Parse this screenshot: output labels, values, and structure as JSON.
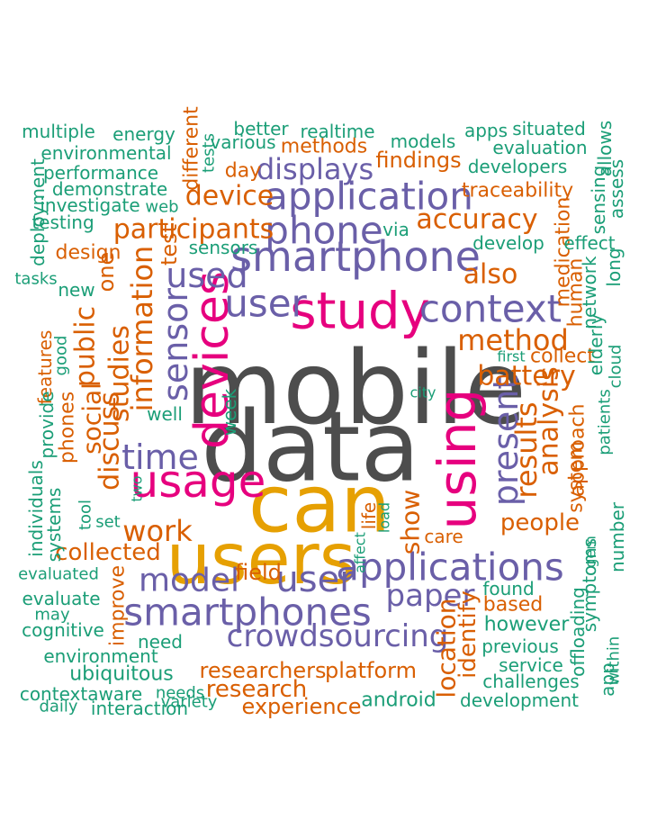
{
  "colors": {
    "gray": "#4d4d4d",
    "orange": "#d95f02",
    "gold": "#e6a002",
    "purple": "#6a5fa8",
    "magenta": "#e6007e",
    "green": "#1b9e77"
  },
  "words": [
    {
      "text": "mobile",
      "color": "gray"
    },
    {
      "text": "data",
      "color": "gray"
    },
    {
      "text": "can",
      "color": "gold"
    },
    {
      "text": "users",
      "color": "gold"
    },
    {
      "text": "study",
      "color": "magenta"
    },
    {
      "text": "devices",
      "color": "magenta"
    },
    {
      "text": "usage",
      "color": "magenta"
    },
    {
      "text": "using",
      "color": "magenta"
    },
    {
      "text": "smartphone",
      "color": "purple"
    },
    {
      "text": "smartphones",
      "color": "purple"
    },
    {
      "text": "application",
      "color": "purple"
    },
    {
      "text": "applications",
      "color": "purple"
    },
    {
      "text": "phone",
      "color": "purple"
    },
    {
      "text": "user",
      "color": "purple"
    },
    {
      "text": "user",
      "color": "purple"
    },
    {
      "text": "context",
      "color": "purple"
    },
    {
      "text": "crowdsourcing",
      "color": "purple"
    },
    {
      "text": "model",
      "color": "purple"
    },
    {
      "text": "paper",
      "color": "purple"
    },
    {
      "text": "present",
      "color": "purple"
    },
    {
      "text": "sensor",
      "color": "purple"
    },
    {
      "text": "time",
      "color": "purple"
    },
    {
      "text": "used",
      "color": "purple"
    },
    {
      "text": "displays",
      "color": "purple"
    },
    {
      "text": "participants",
      "color": "orange"
    },
    {
      "text": "device",
      "color": "orange"
    },
    {
      "text": "accuracy",
      "color": "orange"
    },
    {
      "text": "method",
      "color": "orange"
    },
    {
      "text": "battery",
      "color": "orange"
    },
    {
      "text": "results",
      "color": "orange"
    },
    {
      "text": "analysis",
      "color": "orange"
    },
    {
      "text": "also",
      "color": "orange"
    },
    {
      "text": "information",
      "color": "orange"
    },
    {
      "text": "studies",
      "color": "orange"
    },
    {
      "text": "public",
      "color": "orange"
    },
    {
      "text": "discuss",
      "color": "orange"
    },
    {
      "text": "social",
      "color": "orange"
    },
    {
      "text": "work",
      "color": "orange"
    },
    {
      "text": "collected",
      "color": "orange"
    },
    {
      "text": "research",
      "color": "orange"
    },
    {
      "text": "researchers",
      "color": "orange"
    },
    {
      "text": "platform",
      "color": "orange"
    },
    {
      "text": "experience",
      "color": "orange"
    },
    {
      "text": "location",
      "color": "orange"
    },
    {
      "text": "identify",
      "color": "orange"
    },
    {
      "text": "show",
      "color": "orange"
    },
    {
      "text": "people",
      "color": "orange"
    },
    {
      "text": "based",
      "color": "orange"
    },
    {
      "text": "approach",
      "color": "orange"
    },
    {
      "text": "system",
      "color": "orange"
    },
    {
      "text": "findings",
      "color": "orange"
    },
    {
      "text": "methods",
      "color": "orange"
    },
    {
      "text": "day",
      "color": "orange"
    },
    {
      "text": "design",
      "color": "orange"
    },
    {
      "text": "different",
      "color": "orange"
    },
    {
      "text": "traceability",
      "color": "orange"
    },
    {
      "text": "medication",
      "color": "orange"
    },
    {
      "text": "human",
      "color": "orange"
    },
    {
      "text": "collect",
      "color": "orange"
    },
    {
      "text": "phones",
      "color": "orange"
    },
    {
      "text": "features",
      "color": "orange"
    },
    {
      "text": "one",
      "color": "orange"
    },
    {
      "text": "test",
      "color": "orange"
    },
    {
      "text": "improve",
      "color": "orange"
    },
    {
      "text": "field",
      "color": "orange"
    },
    {
      "text": "care",
      "color": "orange"
    },
    {
      "text": "life",
      "color": "orange"
    },
    {
      "text": "multiple",
      "color": "green"
    },
    {
      "text": "energy",
      "color": "green"
    },
    {
      "text": "better",
      "color": "green"
    },
    {
      "text": "realtime",
      "color": "green"
    },
    {
      "text": "models",
      "color": "green"
    },
    {
      "text": "apps",
      "color": "green"
    },
    {
      "text": "situated",
      "color": "green"
    },
    {
      "text": "environmental",
      "color": "green"
    },
    {
      "text": "performance",
      "color": "green"
    },
    {
      "text": "demonstrate",
      "color": "green"
    },
    {
      "text": "investigate",
      "color": "green"
    },
    {
      "text": "testing",
      "color": "green"
    },
    {
      "text": "web",
      "color": "green"
    },
    {
      "text": "various",
      "color": "green"
    },
    {
      "text": "tests",
      "color": "green"
    },
    {
      "text": "evaluation",
      "color": "green"
    },
    {
      "text": "developers",
      "color": "green"
    },
    {
      "text": "develop",
      "color": "green"
    },
    {
      "text": "sensors",
      "color": "green"
    },
    {
      "text": "via",
      "color": "green"
    },
    {
      "text": "tasks",
      "color": "green"
    },
    {
      "text": "new",
      "color": "green"
    },
    {
      "text": "deployment",
      "color": "green"
    },
    {
      "text": "provide",
      "color": "green"
    },
    {
      "text": "good",
      "color": "green"
    },
    {
      "text": "well",
      "color": "green"
    },
    {
      "text": "week",
      "color": "green"
    },
    {
      "text": "first",
      "color": "green"
    },
    {
      "text": "city",
      "color": "green"
    },
    {
      "text": "effect",
      "color": "green"
    },
    {
      "text": "long",
      "color": "green"
    },
    {
      "text": "assess",
      "color": "green"
    },
    {
      "text": "allows",
      "color": "green"
    },
    {
      "text": "sensing",
      "color": "green"
    },
    {
      "text": "network",
      "color": "green"
    },
    {
      "text": "elderly",
      "color": "green"
    },
    {
      "text": "cloud",
      "color": "green"
    },
    {
      "text": "patients",
      "color": "green"
    },
    {
      "text": "number",
      "color": "green"
    },
    {
      "text": "individuals",
      "color": "green"
    },
    {
      "text": "systems",
      "color": "green"
    },
    {
      "text": "tool",
      "color": "green"
    },
    {
      "text": "two",
      "color": "green"
    },
    {
      "text": "set",
      "color": "green"
    },
    {
      "text": "evaluated",
      "color": "green"
    },
    {
      "text": "evaluate",
      "color": "green"
    },
    {
      "text": "may",
      "color": "green"
    },
    {
      "text": "cognitive",
      "color": "green"
    },
    {
      "text": "environment",
      "color": "green"
    },
    {
      "text": "ubiquitous",
      "color": "green"
    },
    {
      "text": "contextaware",
      "color": "green"
    },
    {
      "text": "daily",
      "color": "green"
    },
    {
      "text": "needs",
      "color": "green"
    },
    {
      "text": "variety",
      "color": "green"
    },
    {
      "text": "interaction",
      "color": "green"
    },
    {
      "text": "need",
      "color": "green"
    },
    {
      "text": "android",
      "color": "green"
    },
    {
      "text": "development",
      "color": "green"
    },
    {
      "text": "challenges",
      "color": "green"
    },
    {
      "text": "service",
      "color": "green"
    },
    {
      "text": "previous",
      "color": "green"
    },
    {
      "text": "however",
      "color": "green"
    },
    {
      "text": "found",
      "color": "green"
    },
    {
      "text": "offloading",
      "color": "green"
    },
    {
      "text": "symptoms",
      "color": "green"
    },
    {
      "text": "app",
      "color": "green"
    },
    {
      "text": "within",
      "color": "green"
    },
    {
      "text": "load",
      "color": "green"
    },
    {
      "text": "affect",
      "color": "green"
    },
    {
      "text": "gem",
      "color": "green"
    }
  ]
}
